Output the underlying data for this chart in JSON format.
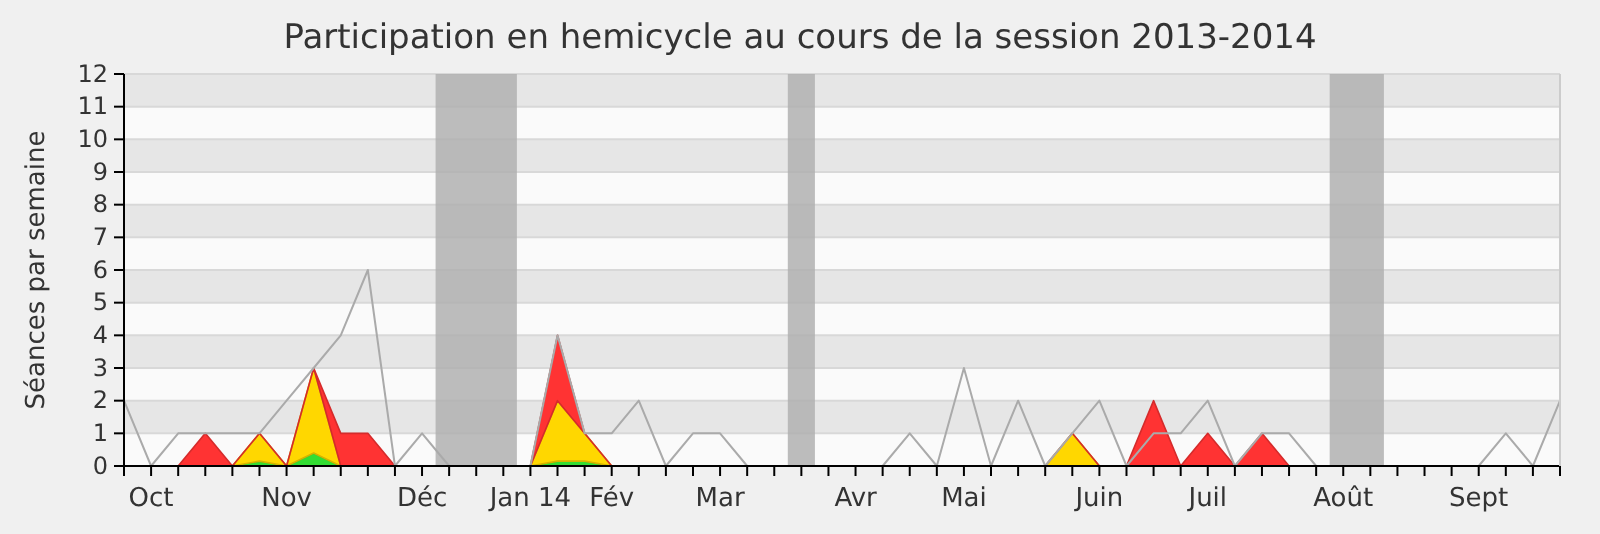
{
  "chart_data": {
    "type": "area",
    "title": "Participation en hemicycle au cours de la session 2013-2014",
    "ylabel": "Séances par semaine",
    "stacked": true,
    "x": [
      "2013-09-30",
      "2013-10-07",
      "2013-10-14",
      "2013-10-21",
      "2013-10-28",
      "2013-11-04",
      "2013-11-11",
      "2013-11-18",
      "2013-11-25",
      "2013-12-02",
      "2013-12-09",
      "2013-12-16",
      "2013-12-23",
      "2013-12-30",
      "2014-01-06",
      "2014-01-13",
      "2014-01-20",
      "2014-01-27",
      "2014-02-03",
      "2014-02-10",
      "2014-02-17",
      "2014-02-24",
      "2014-03-03",
      "2014-03-10",
      "2014-03-17",
      "2014-03-24",
      "2014-03-31",
      "2014-04-07",
      "2014-04-14",
      "2014-04-21",
      "2014-04-28",
      "2014-05-05",
      "2014-05-12",
      "2014-05-19",
      "2014-05-26",
      "2014-06-02",
      "2014-06-09",
      "2014-06-16",
      "2014-06-23",
      "2014-06-30",
      "2014-07-07",
      "2014-07-14",
      "2014-07-21",
      "2014-07-28",
      "2014-08-04",
      "2014-08-11",
      "2014-08-18",
      "2014-08-25",
      "2014-09-01",
      "2014-09-08",
      "2014-09-15",
      "2014-09-22",
      "2014-09-29",
      "2014-10-06"
    ],
    "series": [
      {
        "color": "#33dd33",
        "values": [
          0,
          0,
          0,
          0,
          0,
          0.15,
          0,
          0.4,
          0,
          0,
          0,
          0,
          0,
          0,
          0,
          0,
          0.15,
          0.15,
          0,
          0,
          0,
          0,
          0,
          0,
          0,
          0,
          0,
          0,
          0,
          0,
          0,
          0,
          0,
          0,
          0,
          0,
          0,
          0,
          0,
          0,
          0,
          0,
          0,
          0,
          0,
          0,
          0,
          0,
          0,
          0,
          0,
          0,
          0,
          0
        ]
      },
      {
        "color": "#ffd700",
        "values": [
          0,
          0,
          0,
          0,
          0,
          0.85,
          0,
          2.6,
          0,
          0,
          0,
          0,
          0,
          0,
          0,
          0,
          1.85,
          0.85,
          0,
          0,
          0,
          0,
          0,
          0,
          0,
          0,
          0,
          0,
          0,
          0,
          0,
          0,
          0,
          0,
          0,
          1,
          0,
          0,
          0,
          0,
          0,
          0,
          0,
          0,
          0,
          0,
          0,
          0,
          0,
          0,
          0,
          0,
          0,
          0
        ]
      },
      {
        "color": "#ff3333",
        "values": [
          0,
          0,
          0,
          1,
          0,
          0,
          0,
          0,
          1,
          1,
          0,
          0,
          0,
          0,
          0,
          0,
          2,
          0,
          0,
          0,
          0,
          0,
          0,
          0,
          0,
          0,
          0,
          0,
          0,
          0,
          0,
          0,
          0,
          0,
          0,
          0,
          0,
          0,
          2,
          0,
          1,
          0,
          1,
          0,
          0,
          0,
          0,
          0,
          0,
          0,
          0,
          0,
          0,
          0
        ]
      },
      {
        "type": "line",
        "color": "#aaaaaa",
        "values": [
          2,
          0,
          1,
          1,
          1,
          1,
          2,
          3,
          4,
          6,
          0,
          1,
          0,
          0,
          0,
          0,
          4,
          1,
          1,
          2,
          0,
          1,
          1,
          0,
          0,
          0,
          0,
          0,
          0,
          1,
          0,
          3,
          0,
          2,
          0,
          1,
          2,
          0,
          1,
          1,
          2,
          0,
          1,
          1,
          0,
          0,
          0,
          0,
          0,
          0,
          0,
          1,
          0,
          2
        ]
      }
    ],
    "xlim": [
      "2013-09-30",
      "2014-10-06"
    ],
    "xticks": [
      {
        "value": "2013-10-07",
        "label": "Oct"
      },
      {
        "value": "2013-11-11",
        "label": "Nov"
      },
      {
        "value": "2013-12-16",
        "label": "Déc"
      },
      {
        "value": "2014-01-13",
        "label": "Jan 14"
      },
      {
        "value": "2014-02-03",
        "label": "Fév"
      },
      {
        "value": "2014-03-03",
        "label": "Mar"
      },
      {
        "value": "2014-04-07",
        "label": "Avr"
      },
      {
        "value": "2014-05-05",
        "label": "Mai"
      },
      {
        "value": "2014-06-09",
        "label": "Juin"
      },
      {
        "value": "2014-07-07",
        "label": "Juil"
      },
      {
        "value": "2014-08-11",
        "label": "Août"
      },
      {
        "value": "2014-09-15",
        "label": "Sept"
      }
    ],
    "ylim": [
      0,
      12
    ],
    "yticks": [
      0,
      1,
      2,
      3,
      4,
      5,
      6,
      7,
      8,
      9,
      10,
      11,
      12
    ],
    "grid": "y",
    "bands": [
      {
        "axis": "x",
        "from": "2013-12-19T12:00",
        "to": "2014-01-09T12:00",
        "color": "#b0b0b0"
      },
      {
        "axis": "x",
        "from": "2014-03-20T12:00",
        "to": "2014-03-27T12:00",
        "color": "#b0b0b0"
      },
      {
        "axis": "x",
        "from": "2014-08-07T12:00",
        "to": "2014-08-21T12:00",
        "color": "#b0b0b0"
      }
    ]
  }
}
